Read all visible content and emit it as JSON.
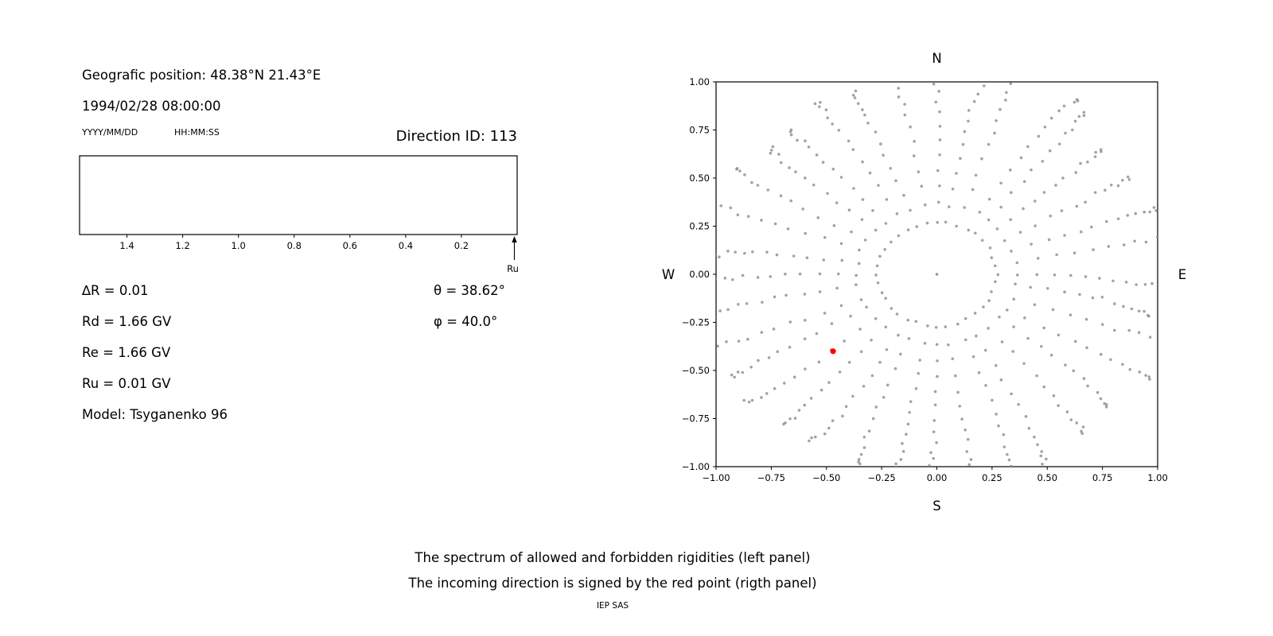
{
  "header": {
    "geo_position": "Geografic position: 48.38°N 21.43°E",
    "datetime": "1994/02/28 08:00:00",
    "date_format": "YYYY/MM/DD",
    "time_format": "HH:MM:SS",
    "direction_id": "Direction ID: 113"
  },
  "left_panel": {
    "delta_r": "∆R = 0.01",
    "theta": "θ = 38.62°",
    "rd": "Rd = 1.66 GV",
    "phi": "φ = 40.0°",
    "re": "Re = 1.66 GV",
    "ru": "Ru = 0.01 GV",
    "model": "Model: Tsyganenko 96"
  },
  "caption": {
    "line1": "The spectrum of allowed and forbidden rigidities (left panel)",
    "line2": "The incoming direction is signed by the red point (rigth panel)",
    "credit": "IEP SAS"
  },
  "chart_data": [
    {
      "id": "rigidity-spectrum",
      "type": "bar",
      "xlabel": "",
      "ylabel": "",
      "xlim": [
        1.57,
        0.0
      ],
      "axis_reversed": true,
      "x_tick_values": [
        1.4,
        1.2,
        1.0,
        0.8,
        0.6,
        0.4,
        0.2
      ],
      "x_tick_labels": [
        "1.4",
        "1.2",
        "1.0",
        "0.8",
        "0.6",
        "0.4",
        "0.2"
      ],
      "values": [],
      "annotations": [
        {
          "label": "Ru",
          "x": 0.01,
          "arrow": "up"
        }
      ]
    },
    {
      "id": "incoming-direction",
      "type": "scatter",
      "xlim": [
        -1.0,
        1.0
      ],
      "ylim": [
        -1.0,
        1.0
      ],
      "x_tick_values": [
        -1.0,
        -0.75,
        -0.5,
        -0.25,
        0.0,
        0.25,
        0.5,
        0.75,
        1.0
      ],
      "x_tick_labels": [
        "−1.00",
        "−0.75",
        "−0.50",
        "−0.25",
        "0.00",
        "0.25",
        "0.50",
        "0.75",
        "1.00"
      ],
      "y_tick_values": [
        -1.0,
        -0.75,
        -0.5,
        -0.25,
        0.0,
        0.25,
        0.5,
        0.75,
        1.0
      ],
      "y_tick_labels": [
        "−1.00",
        "−0.75",
        "−0.50",
        "−0.25",
        "0.00",
        "0.25",
        "0.50",
        "0.75",
        "1.00"
      ],
      "compass": {
        "top": "N",
        "bottom": "S",
        "left": "W",
        "right": "E"
      },
      "grid": false,
      "legend": "none",
      "dot_color": "#8c8c8c",
      "spokes": {
        "count": 36,
        "r_inner": 0.27,
        "r_outer": 1.05,
        "dots_per_spoke": 15
      },
      "center_dot": {
        "x": 0.0,
        "y": 0.0
      },
      "red_point": {
        "x": -0.47,
        "y": -0.4,
        "color": "#ff0000"
      }
    }
  ]
}
